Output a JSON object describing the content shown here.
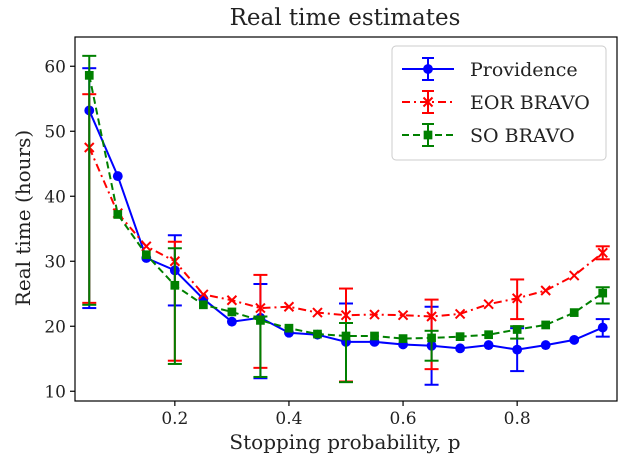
{
  "chart_data": {
    "type": "line",
    "title": "Real time estimates",
    "xlabel": "Stopping probability, p",
    "ylabel": "Real time (hours)",
    "xlim": [
      0.025,
      0.975
    ],
    "ylim": [
      8.5,
      64.5
    ],
    "xticks": [
      0.2,
      0.4,
      0.6,
      0.8
    ],
    "yticks": [
      10,
      20,
      30,
      40,
      50,
      60
    ],
    "grid": false,
    "legend_position": "top-right",
    "x": [
      0.05,
      0.1,
      0.15,
      0.2,
      0.25,
      0.3,
      0.35,
      0.4,
      0.45,
      0.5,
      0.55,
      0.6,
      0.65,
      0.7,
      0.75,
      0.8,
      0.85,
      0.9,
      0.95
    ],
    "series": [
      {
        "name": "Providence",
        "color": "#0000ff",
        "marker": "circle",
        "line_style": "solid",
        "values": [
          53.2,
          43.1,
          30.5,
          28.6,
          24.2,
          20.7,
          21.3,
          19.0,
          18.7,
          17.6,
          17.6,
          17.2,
          17.0,
          16.6,
          17.1,
          16.4,
          17.1,
          17.9,
          19.8
        ],
        "error_bars": [
          {
            "x": 0.05,
            "low": 22.8,
            "high": 59.7
          },
          {
            "x": 0.2,
            "low": 23.2,
            "high": 34.0
          },
          {
            "x": 0.35,
            "low": 12.0,
            "high": 26.5
          },
          {
            "x": 0.5,
            "low": 11.5,
            "high": 23.5
          },
          {
            "x": 0.65,
            "low": 11.0,
            "high": 23.0
          },
          {
            "x": 0.8,
            "low": 13.1,
            "high": 19.7
          },
          {
            "x": 0.95,
            "low": 18.4,
            "high": 21.1
          }
        ]
      },
      {
        "name": "EOR BRAVO",
        "color": "#ff0000",
        "marker": "x",
        "line_style": "dashdot",
        "values": [
          47.5,
          37.4,
          32.3,
          30.0,
          24.9,
          24.0,
          22.8,
          23.0,
          22.1,
          21.7,
          21.8,
          21.7,
          21.5,
          21.9,
          23.4,
          24.3,
          25.5,
          27.8,
          31.3
        ],
        "error_bars": [
          {
            "x": 0.05,
            "low": 23.6,
            "high": 55.7
          },
          {
            "x": 0.2,
            "low": 14.7,
            "high": 33.0
          },
          {
            "x": 0.35,
            "low": 13.6,
            "high": 27.9
          },
          {
            "x": 0.5,
            "low": 11.5,
            "high": 25.8
          },
          {
            "x": 0.65,
            "low": 13.4,
            "high": 24.1
          },
          {
            "x": 0.8,
            "low": 21.1,
            "high": 27.2
          },
          {
            "x": 0.95,
            "low": 30.3,
            "high": 32.3
          }
        ]
      },
      {
        "name": "SO BRAVO",
        "color": "#008000",
        "marker": "square",
        "line_style": "dashed",
        "values": [
          58.6,
          37.2,
          31.0,
          26.3,
          23.3,
          22.2,
          20.9,
          19.7,
          18.8,
          18.5,
          18.5,
          18.1,
          18.2,
          18.4,
          18.7,
          19.5,
          20.2,
          22.1,
          25.1
        ],
        "error_bars": [
          {
            "x": 0.05,
            "low": 23.3,
            "high": 61.6
          },
          {
            "x": 0.2,
            "low": 14.2,
            "high": 32.0
          },
          {
            "x": 0.35,
            "low": 12.2,
            "high": 21.5
          },
          {
            "x": 0.5,
            "low": 11.4,
            "high": 20.5
          },
          {
            "x": 0.65,
            "low": 14.7,
            "high": 19.3
          },
          {
            "x": 0.8,
            "low": 18.1,
            "high": 20.0
          },
          {
            "x": 0.95,
            "low": 23.5,
            "high": 26.0
          }
        ]
      }
    ]
  }
}
